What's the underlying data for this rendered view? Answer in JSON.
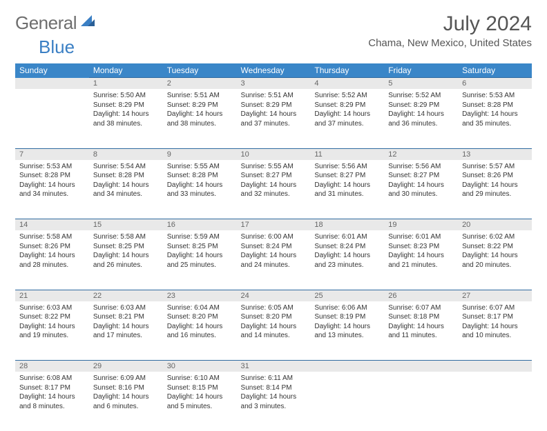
{
  "logo": {
    "general": "General",
    "blue": "Blue"
  },
  "title": "July 2024",
  "location": "Chama, New Mexico, United States",
  "colors": {
    "header_bg": "#3a86c8",
    "daynum_bg": "#e9e9e9",
    "border": "#2f6aa0",
    "text": "#333333",
    "title_text": "#555555"
  },
  "weekdays": [
    "Sunday",
    "Monday",
    "Tuesday",
    "Wednesday",
    "Thursday",
    "Friday",
    "Saturday"
  ],
  "weeks": [
    [
      null,
      {
        "n": "1",
        "sr": "Sunrise: 5:50 AM",
        "ss": "Sunset: 8:29 PM",
        "dl": "Daylight: 14 hours and 38 minutes."
      },
      {
        "n": "2",
        "sr": "Sunrise: 5:51 AM",
        "ss": "Sunset: 8:29 PM",
        "dl": "Daylight: 14 hours and 38 minutes."
      },
      {
        "n": "3",
        "sr": "Sunrise: 5:51 AM",
        "ss": "Sunset: 8:29 PM",
        "dl": "Daylight: 14 hours and 37 minutes."
      },
      {
        "n": "4",
        "sr": "Sunrise: 5:52 AM",
        "ss": "Sunset: 8:29 PM",
        "dl": "Daylight: 14 hours and 37 minutes."
      },
      {
        "n": "5",
        "sr": "Sunrise: 5:52 AM",
        "ss": "Sunset: 8:29 PM",
        "dl": "Daylight: 14 hours and 36 minutes."
      },
      {
        "n": "6",
        "sr": "Sunrise: 5:53 AM",
        "ss": "Sunset: 8:28 PM",
        "dl": "Daylight: 14 hours and 35 minutes."
      }
    ],
    [
      {
        "n": "7",
        "sr": "Sunrise: 5:53 AM",
        "ss": "Sunset: 8:28 PM",
        "dl": "Daylight: 14 hours and 34 minutes."
      },
      {
        "n": "8",
        "sr": "Sunrise: 5:54 AM",
        "ss": "Sunset: 8:28 PM",
        "dl": "Daylight: 14 hours and 34 minutes."
      },
      {
        "n": "9",
        "sr": "Sunrise: 5:55 AM",
        "ss": "Sunset: 8:28 PM",
        "dl": "Daylight: 14 hours and 33 minutes."
      },
      {
        "n": "10",
        "sr": "Sunrise: 5:55 AM",
        "ss": "Sunset: 8:27 PM",
        "dl": "Daylight: 14 hours and 32 minutes."
      },
      {
        "n": "11",
        "sr": "Sunrise: 5:56 AM",
        "ss": "Sunset: 8:27 PM",
        "dl": "Daylight: 14 hours and 31 minutes."
      },
      {
        "n": "12",
        "sr": "Sunrise: 5:56 AM",
        "ss": "Sunset: 8:27 PM",
        "dl": "Daylight: 14 hours and 30 minutes."
      },
      {
        "n": "13",
        "sr": "Sunrise: 5:57 AM",
        "ss": "Sunset: 8:26 PM",
        "dl": "Daylight: 14 hours and 29 minutes."
      }
    ],
    [
      {
        "n": "14",
        "sr": "Sunrise: 5:58 AM",
        "ss": "Sunset: 8:26 PM",
        "dl": "Daylight: 14 hours and 28 minutes."
      },
      {
        "n": "15",
        "sr": "Sunrise: 5:58 AM",
        "ss": "Sunset: 8:25 PM",
        "dl": "Daylight: 14 hours and 26 minutes."
      },
      {
        "n": "16",
        "sr": "Sunrise: 5:59 AM",
        "ss": "Sunset: 8:25 PM",
        "dl": "Daylight: 14 hours and 25 minutes."
      },
      {
        "n": "17",
        "sr": "Sunrise: 6:00 AM",
        "ss": "Sunset: 8:24 PM",
        "dl": "Daylight: 14 hours and 24 minutes."
      },
      {
        "n": "18",
        "sr": "Sunrise: 6:01 AM",
        "ss": "Sunset: 8:24 PM",
        "dl": "Daylight: 14 hours and 23 minutes."
      },
      {
        "n": "19",
        "sr": "Sunrise: 6:01 AM",
        "ss": "Sunset: 8:23 PM",
        "dl": "Daylight: 14 hours and 21 minutes."
      },
      {
        "n": "20",
        "sr": "Sunrise: 6:02 AM",
        "ss": "Sunset: 8:22 PM",
        "dl": "Daylight: 14 hours and 20 minutes."
      }
    ],
    [
      {
        "n": "21",
        "sr": "Sunrise: 6:03 AM",
        "ss": "Sunset: 8:22 PM",
        "dl": "Daylight: 14 hours and 19 minutes."
      },
      {
        "n": "22",
        "sr": "Sunrise: 6:03 AM",
        "ss": "Sunset: 8:21 PM",
        "dl": "Daylight: 14 hours and 17 minutes."
      },
      {
        "n": "23",
        "sr": "Sunrise: 6:04 AM",
        "ss": "Sunset: 8:20 PM",
        "dl": "Daylight: 14 hours and 16 minutes."
      },
      {
        "n": "24",
        "sr": "Sunrise: 6:05 AM",
        "ss": "Sunset: 8:20 PM",
        "dl": "Daylight: 14 hours and 14 minutes."
      },
      {
        "n": "25",
        "sr": "Sunrise: 6:06 AM",
        "ss": "Sunset: 8:19 PM",
        "dl": "Daylight: 14 hours and 13 minutes."
      },
      {
        "n": "26",
        "sr": "Sunrise: 6:07 AM",
        "ss": "Sunset: 8:18 PM",
        "dl": "Daylight: 14 hours and 11 minutes."
      },
      {
        "n": "27",
        "sr": "Sunrise: 6:07 AM",
        "ss": "Sunset: 8:17 PM",
        "dl": "Daylight: 14 hours and 10 minutes."
      }
    ],
    [
      {
        "n": "28",
        "sr": "Sunrise: 6:08 AM",
        "ss": "Sunset: 8:17 PM",
        "dl": "Daylight: 14 hours and 8 minutes."
      },
      {
        "n": "29",
        "sr": "Sunrise: 6:09 AM",
        "ss": "Sunset: 8:16 PM",
        "dl": "Daylight: 14 hours and 6 minutes."
      },
      {
        "n": "30",
        "sr": "Sunrise: 6:10 AM",
        "ss": "Sunset: 8:15 PM",
        "dl": "Daylight: 14 hours and 5 minutes."
      },
      {
        "n": "31",
        "sr": "Sunrise: 6:11 AM",
        "ss": "Sunset: 8:14 PM",
        "dl": "Daylight: 14 hours and 3 minutes."
      },
      null,
      null,
      null
    ]
  ]
}
